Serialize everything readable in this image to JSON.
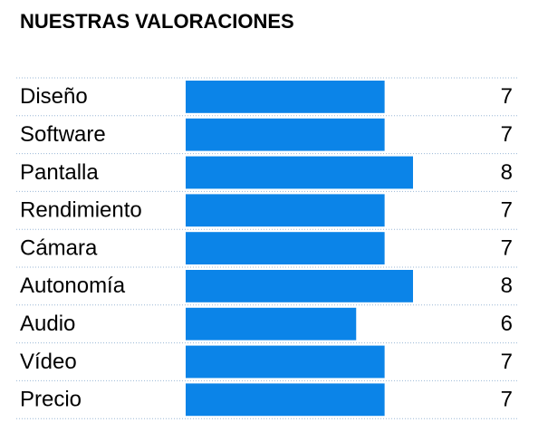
{
  "chart_data": {
    "type": "bar",
    "orientation": "horizontal",
    "title": "NUESTRAS VALORACIONES",
    "categories": [
      "Diseño",
      "Software",
      "Pantalla",
      "Rendimiento",
      "Cámara",
      "Autonomía",
      "Audio",
      "Vídeo",
      "Precio"
    ],
    "values": [
      7,
      7,
      8,
      7,
      7,
      8,
      6,
      7,
      7
    ],
    "color": "#0b84e8"
  }
}
